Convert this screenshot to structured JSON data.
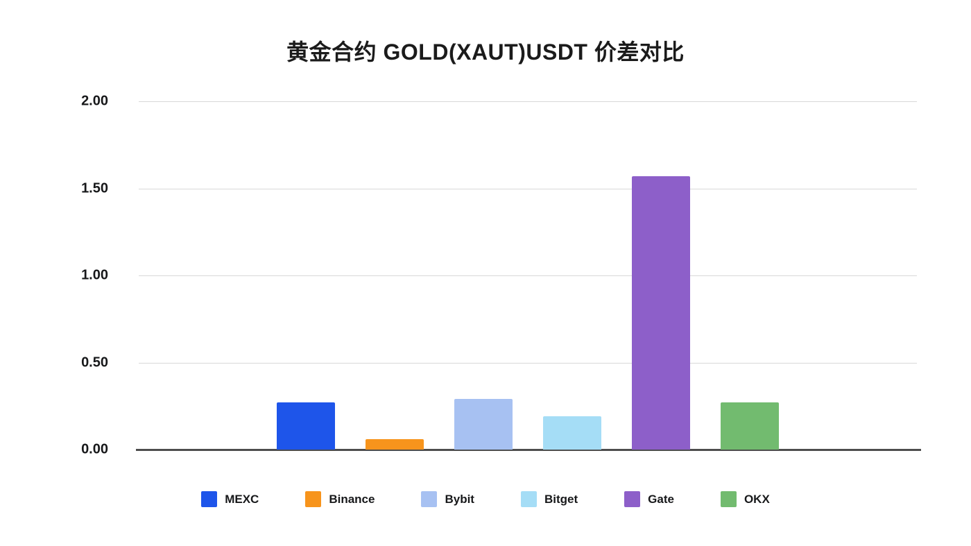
{
  "chart_data": {
    "type": "bar",
    "title": "黄金合约 GOLD(XAUT)USDT 价差对比",
    "categories": [
      "MEXC",
      "Binance",
      "Bybit",
      "Bitget",
      "Gate",
      "OKX"
    ],
    "values": [
      0.27,
      0.06,
      0.29,
      0.19,
      1.57,
      0.27
    ],
    "colors": [
      "#1e55ea",
      "#f7941c",
      "#a7c1f2",
      "#a5ddf6",
      "#8d5fc9",
      "#72bb6f"
    ],
    "xlabel": "",
    "ylabel": "",
    "ylim": [
      0,
      2
    ],
    "yticks": [
      "2.00",
      "1.50",
      "1.00",
      "0.50",
      "0.00"
    ],
    "ytick_values": [
      2.0,
      1.5,
      1.0,
      0.5,
      0.0
    ],
    "grid": true,
    "legend_position": "bottom",
    "axis_color": "#4d4d4d",
    "gridline_color": "#d8d8d8"
  }
}
